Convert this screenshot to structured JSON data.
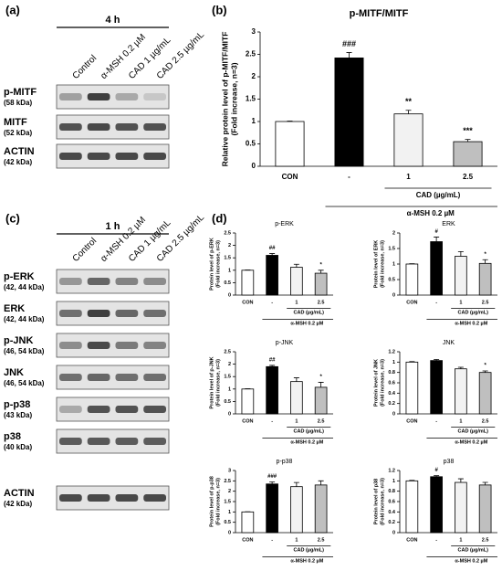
{
  "panels": {
    "a": "(a)",
    "b": "(b)",
    "c": "(c)",
    "d": "(d)"
  },
  "blot_a": {
    "time": "4 h",
    "lanes": [
      "Control",
      "α-MSH 0.2 µM",
      "CAD 1 µg/mL",
      "CAD 2.5 µg/mL"
    ],
    "rows": [
      {
        "label": "p-MITF",
        "size": "(58 kDa)"
      },
      {
        "label": "MITF",
        "size": "(52 kDa)"
      },
      {
        "label": "ACTIN",
        "size": "(42 kDa)"
      }
    ]
  },
  "blot_c": {
    "time": "1 h",
    "lanes": [
      "Control",
      "α-MSH 0.2 µM",
      "CAD 1 µg/mL",
      "CAD 2.5 µg/mL"
    ],
    "rows": [
      {
        "label": "p-ERK",
        "size": "(42, 44 kDa)"
      },
      {
        "label": "ERK",
        "size": "(42, 44 kDa)"
      },
      {
        "label": "p-JNK",
        "size": "(46, 54 kDa)"
      },
      {
        "label": "JNK",
        "size": "(46, 54 kDa)"
      },
      {
        "label": "p-p38",
        "size": "(43 kDa)"
      },
      {
        "label": "p38",
        "size": "(40 kDa)"
      },
      {
        "label": "ACTIN",
        "size": "(42 kDa)"
      }
    ]
  },
  "chart_data": [
    {
      "type": "bar",
      "title": "p-MITF/MITF",
      "ylabel": [
        "Relative protein level of p-MITF/MITF",
        "(Fold increase, n=3)"
      ],
      "categories": [
        "CON",
        "-",
        "1",
        "2.5"
      ],
      "values": [
        1,
        2.42,
        1.17,
        0.55
      ],
      "errors": [
        0.01,
        0.12,
        0.08,
        0.05
      ],
      "annotations": [
        null,
        "###",
        "**",
        "***"
      ],
      "colors": [
        "#ffffff",
        "#000000",
        "#f2f2f2",
        "#bfbfbf"
      ],
      "ylim": [
        0,
        3
      ],
      "yticks": [
        0,
        0.5,
        1,
        1.5,
        2,
        2.5,
        3
      ],
      "cad_label": "CAD (µg/mL)",
      "msh_label": "α-MSH 0.2 µM"
    },
    {
      "type": "bar",
      "title": "p-ERK",
      "ylabel": [
        "Protein level of p-ERK",
        "(Fold increase, n=3)"
      ],
      "categories": [
        "CON",
        "-",
        "1",
        "2.5"
      ],
      "values": [
        1,
        1.6,
        1.12,
        0.88
      ],
      "errors": [
        0.01,
        0.07,
        0.12,
        0.12
      ],
      "annotations": [
        null,
        "##",
        null,
        "*"
      ],
      "colors": [
        "#ffffff",
        "#000000",
        "#f2f2f2",
        "#bfbfbf"
      ],
      "ylim": [
        0,
        2.5
      ],
      "yticks": [
        0,
        0.5,
        1,
        1.5,
        2,
        2.5
      ],
      "cad_label": "CAD (µg/mL)",
      "msh_label": "α-MSH 0.2 µM"
    },
    {
      "type": "bar",
      "title": "ERK",
      "ylabel": [
        "Protein level of ERK",
        "(Fold increase, n=3)"
      ],
      "categories": [
        "CON",
        "-",
        "1",
        "2.5"
      ],
      "values": [
        1,
        1.72,
        1.25,
        1.02
      ],
      "errors": [
        0.01,
        0.15,
        0.15,
        0.12
      ],
      "annotations": [
        null,
        "#",
        null,
        "*"
      ],
      "colors": [
        "#ffffff",
        "#000000",
        "#f2f2f2",
        "#bfbfbf"
      ],
      "ylim": [
        0,
        2
      ],
      "yticks": [
        0,
        0.5,
        1,
        1.5,
        2
      ],
      "cad_label": "CAD (µg/mL)",
      "msh_label": "α-MSH 0.2 µM"
    },
    {
      "type": "bar",
      "title": "p-JNK",
      "ylabel": [
        "Protein level of p-JNK",
        "(Fold increase, n=3)"
      ],
      "categories": [
        "CON",
        "-",
        "1",
        "2.5"
      ],
      "values": [
        1,
        1.9,
        1.3,
        1.07
      ],
      "errors": [
        0.01,
        0.05,
        0.15,
        0.2
      ],
      "annotations": [
        null,
        "##",
        null,
        "*"
      ],
      "colors": [
        "#ffffff",
        "#000000",
        "#f2f2f2",
        "#bfbfbf"
      ],
      "ylim": [
        0,
        2.5
      ],
      "yticks": [
        0,
        0.5,
        1,
        1.5,
        2,
        2.5
      ],
      "cad_label": "CAD (µg/mL)",
      "msh_label": "α-MSH 0.2 µM"
    },
    {
      "type": "bar",
      "title": "JNK",
      "ylabel": [
        "Protein level of JNK",
        "(Fold increase, n=3)"
      ],
      "categories": [
        "CON",
        "-",
        "1",
        "2.5"
      ],
      "values": [
        1,
        1.03,
        0.87,
        0.8
      ],
      "errors": [
        0.01,
        0.02,
        0.03,
        0.03
      ],
      "annotations": [
        null,
        null,
        null,
        "*"
      ],
      "colors": [
        "#ffffff",
        "#000000",
        "#f2f2f2",
        "#bfbfbf"
      ],
      "ylim": [
        0,
        1.2
      ],
      "yticks": [
        0,
        0.2,
        0.4,
        0.6,
        0.8,
        1,
        1.2
      ],
      "cad_label": "CAD (µg/mL)",
      "msh_label": "α-MSH 0.2 µM"
    },
    {
      "type": "bar",
      "title": "p-p38",
      "ylabel": [
        "Protein level of p-p38",
        "(Fold increase, n=3)"
      ],
      "categories": [
        "CON",
        "-",
        "1",
        "2.5"
      ],
      "values": [
        1,
        2.35,
        2.22,
        2.3
      ],
      "errors": [
        0.01,
        0.1,
        0.2,
        0.2
      ],
      "annotations": [
        null,
        "###",
        null,
        null
      ],
      "colors": [
        "#ffffff",
        "#000000",
        "#f2f2f2",
        "#bfbfbf"
      ],
      "ylim": [
        0,
        3
      ],
      "yticks": [
        0,
        0.5,
        1,
        1.5,
        2,
        2.5,
        3
      ],
      "cad_label": "CAD (µg/mL)",
      "msh_label": "α-MSH 0.2 µM"
    },
    {
      "type": "bar",
      "title": "p38",
      "ylabel": [
        "Protein level of p38",
        "(Fold increase, n=3)"
      ],
      "categories": [
        "CON",
        "-",
        "1",
        "2.5"
      ],
      "values": [
        1,
        1.08,
        0.97,
        0.92
      ],
      "errors": [
        0.01,
        0.02,
        0.07,
        0.05
      ],
      "annotations": [
        null,
        "#",
        null,
        null
      ],
      "colors": [
        "#ffffff",
        "#000000",
        "#f2f2f2",
        "#bfbfbf"
      ],
      "ylim": [
        0,
        1.2
      ],
      "yticks": [
        0,
        0.2,
        0.4,
        0.6,
        0.8,
        1,
        1.2
      ],
      "cad_label": "CAD (µg/mL)",
      "msh_label": "α-MSH 0.2 µM"
    }
  ]
}
